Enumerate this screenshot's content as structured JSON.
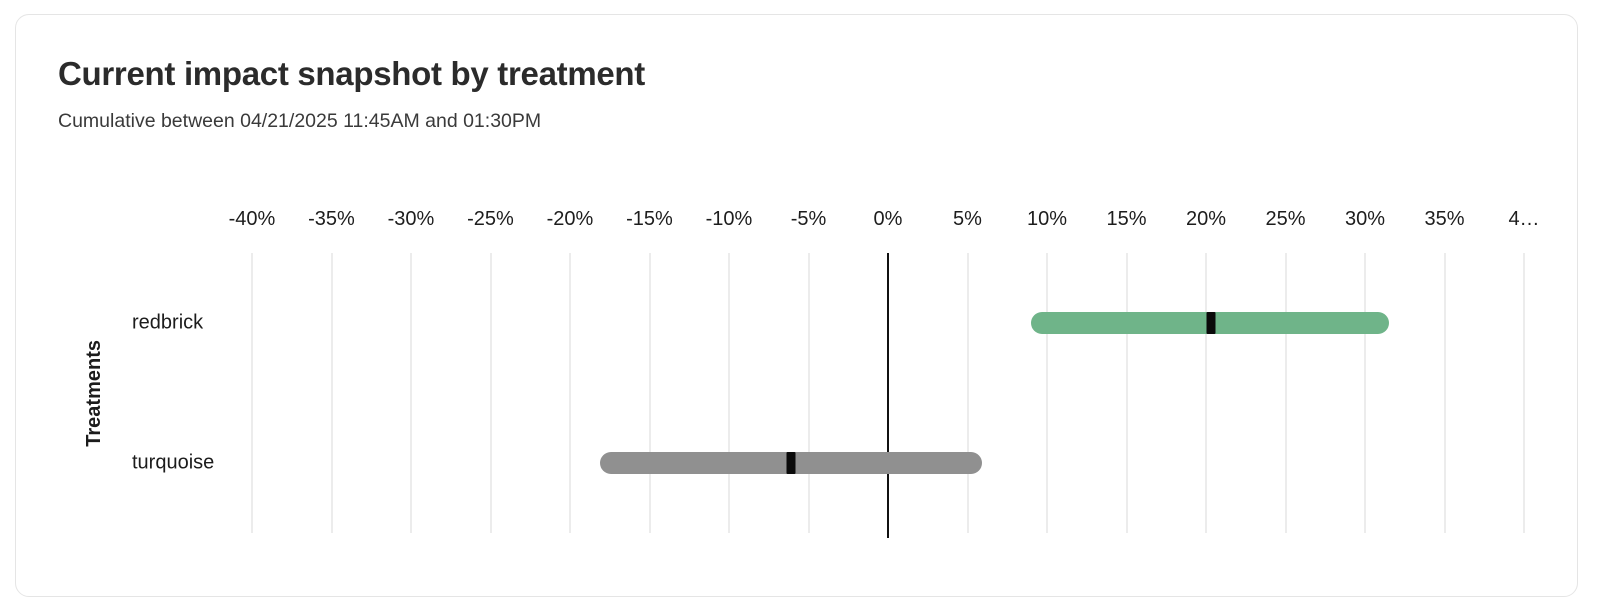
{
  "chart_data": {
    "type": "bar",
    "variant": "horizontal-interval-with-point-estimate",
    "title": "Current impact snapshot by treatment",
    "subtitle": "Cumulative between 04/21/2025 11:45AM and 01:30PM",
    "xlabel": "",
    "ylabel": "Treatments",
    "x_unit": "%",
    "xlim": [
      -40,
      40
    ],
    "x_tick_step": 5,
    "x_tick_values": [
      -40,
      -35,
      -30,
      -25,
      -20,
      -15,
      -10,
      -5,
      0,
      5,
      10,
      15,
      20,
      25,
      30,
      35,
      40
    ],
    "x_tick_labels": [
      "-40%",
      "-35%",
      "-30%",
      "-25%",
      "-20%",
      "-15%",
      "-10%",
      "-5%",
      "0%",
      "5%",
      "10%",
      "15%",
      "20%",
      "25%",
      "30%",
      "35%",
      "4…"
    ],
    "grid": "vertical",
    "zero_line": true,
    "legend": "none",
    "categories": [
      "redbrick",
      "turquoise"
    ],
    "series": [
      {
        "name": "redbrick",
        "low": 9.0,
        "high": 31.5,
        "point": 20.3,
        "color": "#6fb489"
      },
      {
        "name": "turquoise",
        "low": -18.1,
        "high": 5.9,
        "point": -6.1,
        "color": "#909090"
      }
    ],
    "point_marker_color": "#0a0a0a",
    "gridline_color": "#ececec",
    "zero_line_color": "#111111",
    "card_border_color": "#e5e5e5"
  }
}
